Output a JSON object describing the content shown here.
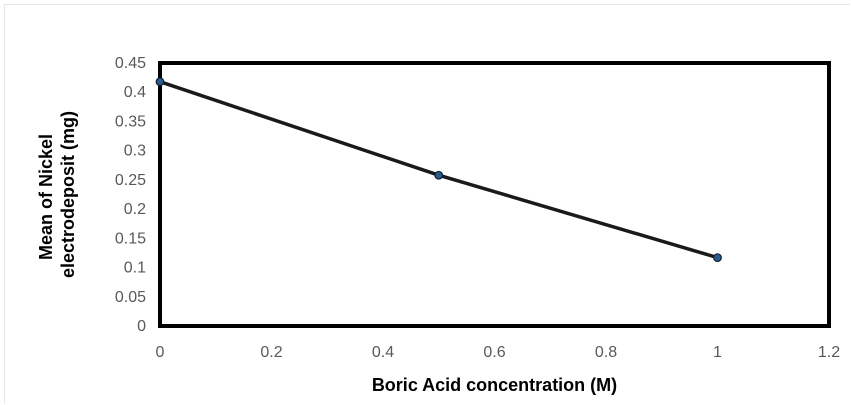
{
  "chart_data": {
    "type": "scatter",
    "title": "",
    "xlabel": "Boric Acid concentration (M)",
    "ylabel_lines": [
      "Mean of Nickel",
      "electrodeposit   (mg)"
    ],
    "xlim": [
      0,
      1.2
    ],
    "ylim": [
      0,
      0.45
    ],
    "x_ticks": [
      0,
      0.2,
      0.4,
      0.6,
      0.8,
      1,
      1.2
    ],
    "x_tick_labels": [
      "0",
      "0.2",
      "0.4",
      "0.6",
      "0.8",
      "1",
      "1.2"
    ],
    "y_ticks": [
      0,
      0.05,
      0.1,
      0.15,
      0.2,
      0.25,
      0.3,
      0.35,
      0.4,
      0.45
    ],
    "y_tick_labels": [
      "0",
      "0.05",
      "0.1",
      "0.15",
      "0.2",
      "0.25",
      "0.3",
      "0.35",
      "0.4",
      "0.45"
    ],
    "grid": false,
    "legend": "none",
    "series": [
      {
        "x": [
          0,
          0.5,
          1
        ],
        "y": [
          0.418,
          0.258,
          0.117
        ],
        "line_color": "#1a1a1a",
        "marker_color": "#2e5c8a"
      }
    ]
  }
}
